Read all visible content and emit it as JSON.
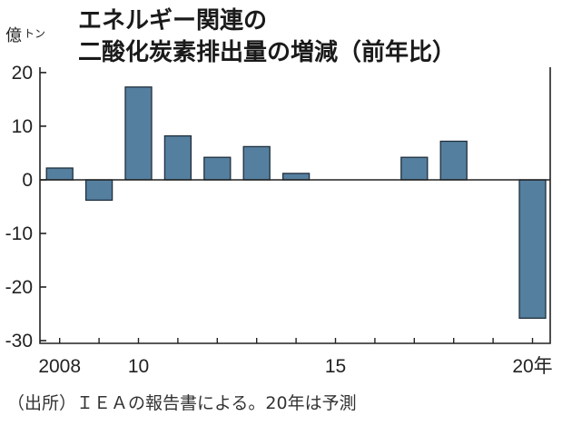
{
  "chart_data": {
    "type": "bar",
    "title_lines": [
      "エネルギー関連の",
      "二酸化炭素排出量の増減（前年比）"
    ],
    "unit_main": "億",
    "unit_sub": "トン",
    "source": "（出所）ＩＥＡの報告書による。20年は予測",
    "x": [
      2008,
      2009,
      2010,
      2011,
      2012,
      2013,
      2014,
      2015,
      2016,
      2017,
      2018,
      2019,
      2020
    ],
    "values": [
      2.2,
      -3.8,
      17.3,
      8.2,
      4.2,
      6.2,
      1.2,
      0,
      0,
      4.2,
      7.2,
      0,
      -25.8
    ],
    "x_tick_labels": [
      {
        "x": 2008,
        "label": "2008"
      },
      {
        "x": 2010,
        "label": "10"
      },
      {
        "x": 2015,
        "label": "15"
      },
      {
        "x": 2020,
        "label": "20年"
      }
    ],
    "y_ticks": [
      20,
      10,
      0,
      -10,
      -20,
      -30
    ],
    "y_tick_labels": [
      "20",
      "10",
      "0",
      "-10",
      "-20",
      "-30"
    ],
    "ylim": [
      -30.5,
      21
    ],
    "grid": false,
    "legend": "none",
    "bar_color": "#557f9f"
  }
}
